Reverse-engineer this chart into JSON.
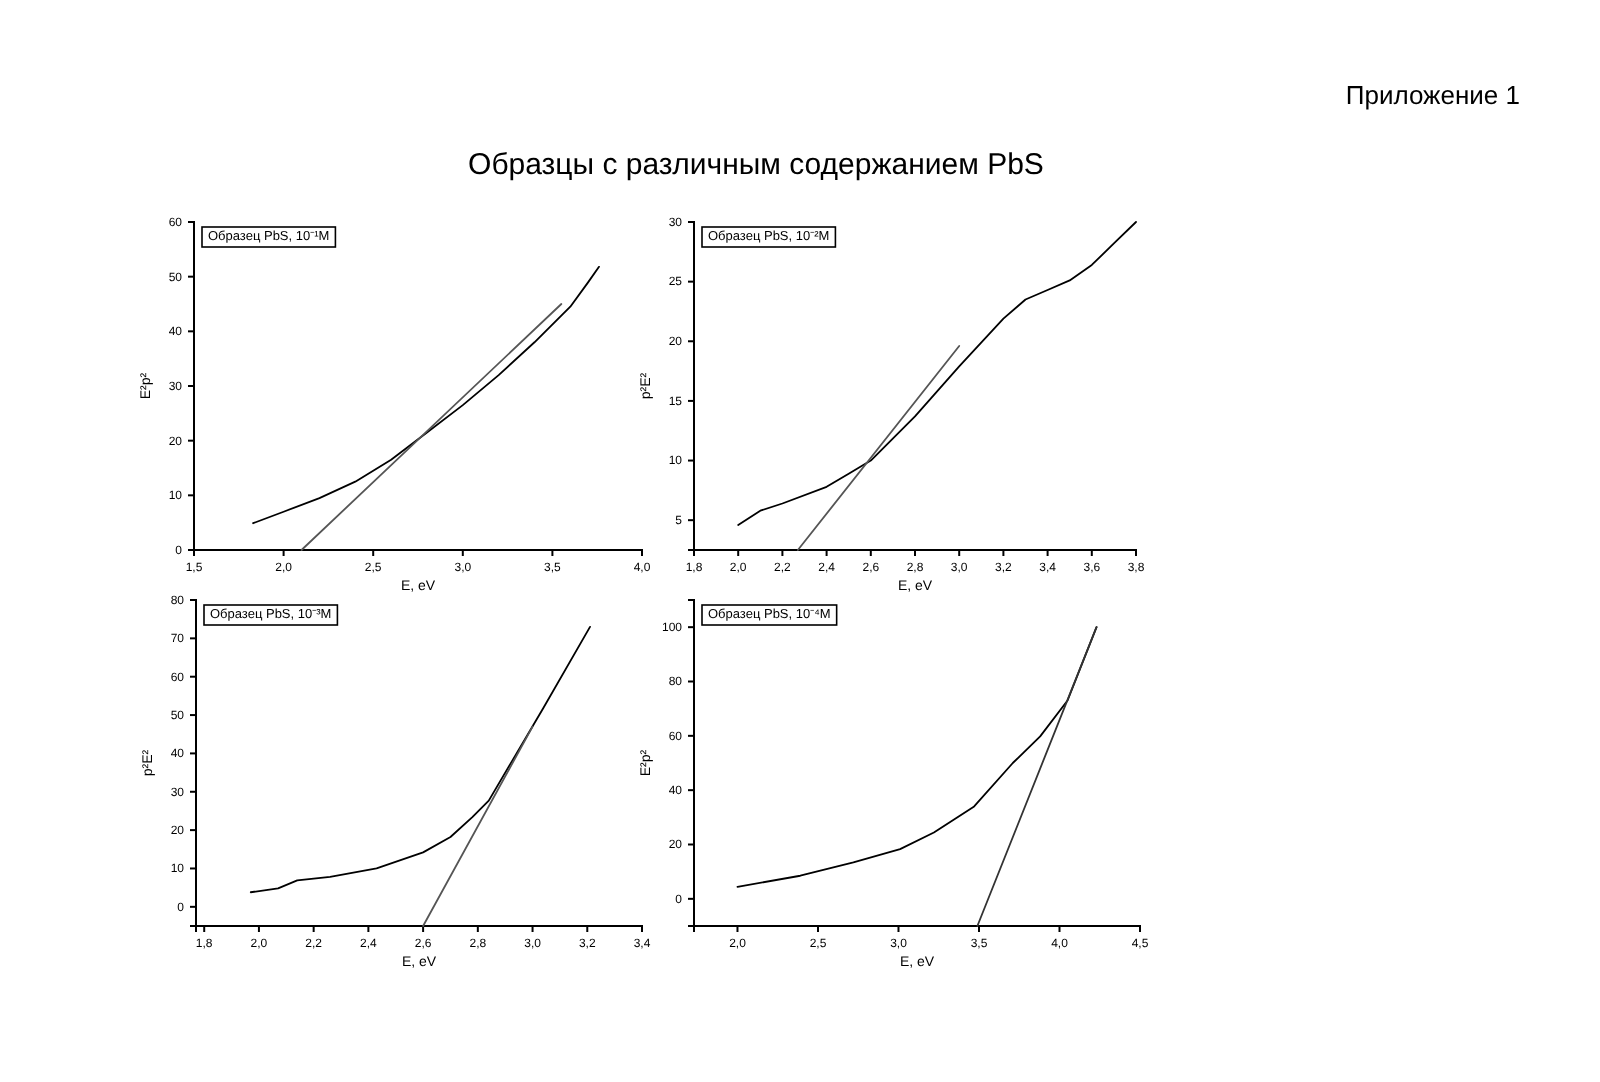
{
  "chart_data": [
    {
      "type": "line",
      "title": "Образцы с различным содержанием PbS",
      "xlabel": "E, eV",
      "ylabel": "E²p²",
      "annotations": [
        "Приложение 1",
        "Образец PbS, 10⁻¹M"
      ],
      "xlim": [
        1.5,
        4.0
      ],
      "xticks": [
        {
          "value": 1.5,
          "label": "1,5"
        },
        {
          "value": 2.0,
          "label": "2,0"
        },
        {
          "value": 2.5,
          "label": "2,5"
        },
        {
          "value": 3.0,
          "label": "3,0"
        },
        {
          "value": 3.5,
          "label": "3,5"
        },
        {
          "value": 4.0,
          "label": "4,0"
        }
      ],
      "ylim": [
        0,
        60
      ],
      "yticks": [
        0,
        10,
        20,
        30,
        40,
        50,
        60
      ],
      "grid": false,
      "marker": "none",
      "series": [
        {
          "color": "#000000",
          "x": [
            1.83,
            2.0,
            2.2,
            2.4,
            2.6,
            2.8,
            3.0,
            3.2,
            3.4,
            3.6,
            3.7,
            3.76
          ],
          "values": [
            4.9,
            7,
            9.5,
            12.5,
            16.5,
            21.5,
            26.5,
            32,
            38,
            44.5,
            49,
            51.8
          ]
        },
        {
          "color": "#555555",
          "x": [
            2.1,
            3.55
          ],
          "values": [
            0,
            45
          ]
        }
      ]
    },
    {
      "type": "line",
      "xlabel": "E, eV",
      "ylabel": "p²E²",
      "annotations": [
        "Образец PbS, 10⁻²M"
      ],
      "xlim": [
        1.8,
        3.8
      ],
      "xticks": [
        {
          "value": 1.8,
          "label": "1,8"
        },
        {
          "value": 2.0,
          "label": "2,0"
        },
        {
          "value": 2.2,
          "label": "2,2"
        },
        {
          "value": 2.4,
          "label": "2,4"
        },
        {
          "value": 2.6,
          "label": "2,6"
        },
        {
          "value": 2.8,
          "label": "2,8"
        },
        {
          "value": 3.0,
          "label": "3,0"
        },
        {
          "value": 3.2,
          "label": "3,2"
        },
        {
          "value": 3.4,
          "label": "3,4"
        },
        {
          "value": 3.6,
          "label": "3,6"
        },
        {
          "value": 3.8,
          "label": "3,8"
        }
      ],
      "ylim": [
        2.5,
        30
      ],
      "yticks": [
        5,
        10,
        15,
        20,
        25,
        30
      ],
      "grid": false,
      "marker": "none",
      "series": [
        {
          "color": "#000000",
          "x": [
            2.0,
            2.1,
            2.2,
            2.4,
            2.5,
            2.6,
            2.8,
            3.0,
            3.2,
            3.3,
            3.4,
            3.5,
            3.6,
            3.7,
            3.8
          ],
          "values": [
            4.6,
            5.8,
            6.4,
            7.8,
            8.9,
            10,
            13.7,
            17.9,
            21.9,
            23.5,
            24.3,
            25.1,
            26.4,
            28.2,
            30
          ]
        },
        {
          "color": "#555555",
          "x": [
            2.27,
            3.0
          ],
          "values": [
            2.5,
            19.6
          ]
        }
      ]
    },
    {
      "type": "line",
      "xlabel": "E, eV",
      "ylabel": "p²E²",
      "annotations": [
        "Образец PbS, 10⁻³M"
      ],
      "xlim": [
        1.77,
        3.4
      ],
      "xticks": [
        {
          "value": 1.8,
          "label": "1,8"
        },
        {
          "value": 2.0,
          "label": "2,0"
        },
        {
          "value": 2.2,
          "label": "2,2"
        },
        {
          "value": 2.4,
          "label": "2,4"
        },
        {
          "value": 2.6,
          "label": "2,6"
        },
        {
          "value": 2.8,
          "label": "2,8"
        },
        {
          "value": 3.0,
          "label": "3,0"
        },
        {
          "value": 3.2,
          "label": "3,2"
        },
        {
          "value": 3.4,
          "label": "3,4"
        }
      ],
      "ylim": [
        -5,
        80
      ],
      "yticks": [
        0,
        10,
        20,
        30,
        40,
        50,
        60,
        70,
        80
      ],
      "grid": false,
      "marker": "none",
      "series": [
        {
          "color": "#000000",
          "x": [
            1.97,
            2.07,
            2.14,
            2.26,
            2.43,
            2.6,
            2.7,
            2.78,
            2.84,
            2.94,
            3.04,
            3.21
          ],
          "values": [
            3.8,
            4.8,
            6.9,
            7.8,
            10,
            14.2,
            18.2,
            23.4,
            27.7,
            39.8,
            51.9,
            73
          ]
        },
        {
          "color": "#555555",
          "x": [
            2.6,
            3.0
          ],
          "values": [
            -5,
            47
          ]
        }
      ]
    },
    {
      "type": "line",
      "xlabel": "E, eV",
      "ylabel": "E²p²",
      "annotations": [
        "Образец PbS, 10⁻⁴M"
      ],
      "xlim": [
        1.73,
        4.5
      ],
      "xticks": [
        {
          "value": 2.0,
          "label": "2,0"
        },
        {
          "value": 2.5,
          "label": "2,5"
        },
        {
          "value": 3.0,
          "label": "3,0"
        },
        {
          "value": 3.5,
          "label": "3,5"
        },
        {
          "value": 4.0,
          "label": "4,0"
        },
        {
          "value": 4.5,
          "label": "4,5"
        }
      ],
      "ylim": [
        -10,
        110
      ],
      "yticks": [
        0,
        20,
        40,
        60,
        80,
        100
      ],
      "grid": false,
      "marker": "none",
      "series": [
        {
          "color": "#000000",
          "x": [
            2.0,
            2.39,
            2.72,
            3.01,
            3.22,
            3.47,
            3.71,
            3.88,
            4.05,
            4.23
          ],
          "values": [
            4.4,
            8.5,
            13.4,
            18.3,
            24.4,
            34,
            50,
            59.8,
            73,
            100
          ]
        },
        {
          "color": "#333333",
          "x": [
            3.49,
            4.23
          ],
          "values": [
            -10,
            100
          ]
        }
      ]
    }
  ]
}
